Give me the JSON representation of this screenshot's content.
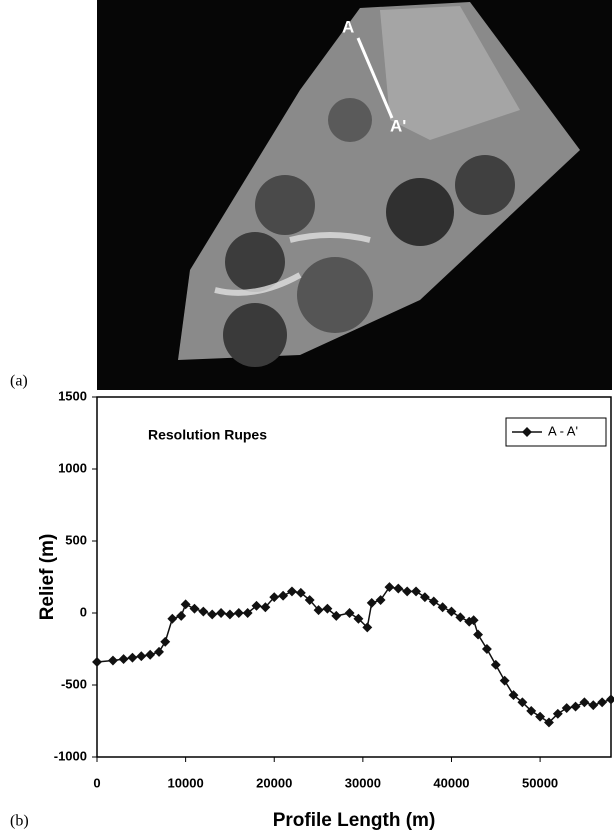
{
  "figure": {
    "panel_a": {
      "label": "(a)",
      "point_a": "A",
      "point_a_prime": "A'"
    },
    "panel_b": {
      "label": "(b)"
    }
  },
  "chart_data": {
    "type": "line",
    "annotation": "Resolution Rupes",
    "x_label": "Profile Length (m)",
    "y_label": "Relief (m)",
    "x": [
      0,
      1800,
      3000,
      4000,
      5000,
      6000,
      7000,
      7700,
      8500,
      9500,
      10000,
      11000,
      12000,
      13000,
      14000,
      15000,
      16000,
      17000,
      18000,
      19000,
      20000,
      21000,
      22000,
      23000,
      24000,
      25000,
      26000,
      27000,
      28500,
      29500,
      30500,
      31000,
      32000,
      33000,
      34000,
      35000,
      36000,
      37000,
      38000,
      39000,
      40000,
      41000,
      42000,
      42500,
      43000,
      44000,
      45000,
      46000,
      47000,
      48000,
      49000,
      50000,
      51000,
      52000,
      53000,
      54000,
      55000,
      56000,
      57000,
      58000
    ],
    "series": [
      {
        "name": "A - A'",
        "color": "#111111",
        "values": [
          -340,
          -330,
          -320,
          -310,
          -300,
          -290,
          -270,
          -200,
          -40,
          -20,
          60,
          30,
          10,
          -10,
          0,
          -10,
          0,
          0,
          50,
          40,
          110,
          120,
          150,
          140,
          90,
          20,
          30,
          -20,
          0,
          -40,
          -100,
          70,
          90,
          180,
          170,
          150,
          150,
          110,
          80,
          40,
          10,
          -30,
          -60,
          -50,
          -150,
          -250,
          -360,
          -470,
          -570,
          -620,
          -680,
          -720,
          -760,
          -700,
          -660,
          -650,
          -620,
          -640,
          -620,
          -600
        ]
      }
    ],
    "xlim": [
      0,
      58000
    ],
    "ylim": [
      -1000,
      1500
    ],
    "xticks": [
      0,
      10000,
      20000,
      30000,
      40000,
      50000
    ],
    "yticks": [
      -1000,
      -500,
      0,
      500,
      1000,
      1500
    ],
    "legend": "upper right",
    "grid": false
  }
}
